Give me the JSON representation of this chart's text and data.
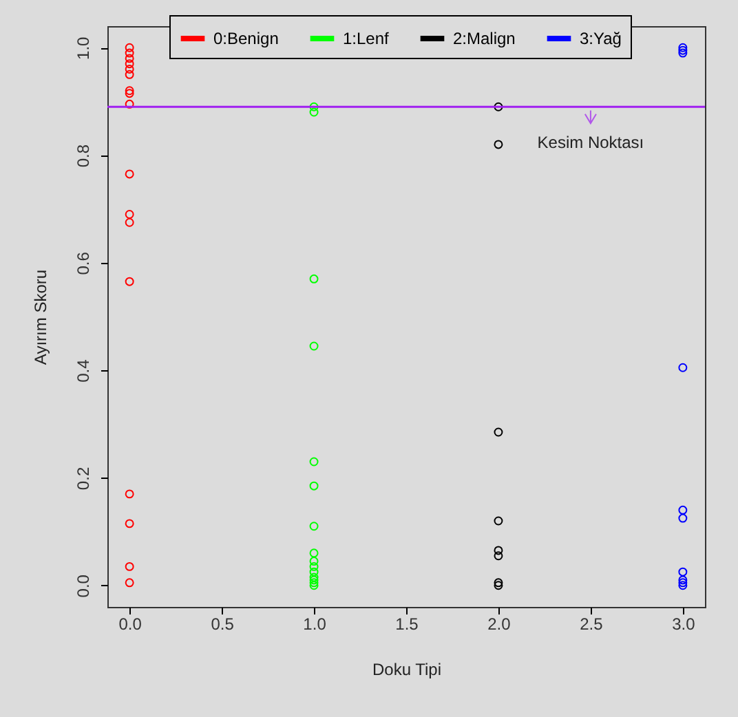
{
  "chart_data": {
    "type": "scatter",
    "xlabel": "Doku Tipi",
    "ylabel": "Ayırım Skoru",
    "xlim": [
      -0.12,
      3.12
    ],
    "ylim": [
      -0.04,
      1.04
    ],
    "xticks": [
      {
        "value": 0,
        "label": "0.0"
      },
      0.5,
      {
        "value": 1,
        "label": "1.0"
      },
      1.5,
      {
        "value": 2,
        "label": "2.0"
      },
      2.5,
      {
        "value": 3,
        "label": "3.0"
      }
    ],
    "yticks": [
      {
        "value": 0,
        "label": "0.0"
      },
      0.2,
      0.4,
      0.6,
      0.8,
      {
        "value": 1,
        "label": "1.0"
      }
    ],
    "grid": false,
    "legend": "top",
    "marker": "circle",
    "ref_lines": [
      {
        "axis": "y",
        "value": 0.89,
        "color": "#a020f0"
      }
    ],
    "annotations": [
      {
        "text": "Kesim Noktası",
        "x": 2.5,
        "y": 0.89
      }
    ],
    "series": [
      {
        "name": "0:Benign",
        "color": "#ff0000",
        "x": [
          0,
          0,
          0,
          0,
          0,
          0,
          0,
          0,
          0,
          0,
          0,
          0,
          0,
          0,
          0,
          0,
          0
        ],
        "values": [
          1.0,
          0.99,
          0.98,
          0.97,
          0.96,
          0.95,
          0.92,
          0.915,
          0.895,
          0.765,
          0.69,
          0.675,
          0.565,
          0.17,
          0.115,
          0.035,
          0.005
        ]
      },
      {
        "name": "1:Lenf",
        "color": "#00ff00",
        "x": [
          1,
          1,
          1,
          1,
          1,
          1,
          1,
          1,
          1,
          1,
          1,
          1,
          1,
          1,
          1
        ],
        "values": [
          0.89,
          0.88,
          0.57,
          0.445,
          0.23,
          0.185,
          0.11,
          0.06,
          0.045,
          0.035,
          0.025,
          0.015,
          0.01,
          0.005,
          0.0
        ]
      },
      {
        "name": "2:Malign",
        "color": "#000000",
        "x": [
          2,
          2,
          2,
          2,
          2,
          2,
          2,
          2
        ],
        "values": [
          0.89,
          0.82,
          0.285,
          0.12,
          0.065,
          0.055,
          0.005,
          0.0
        ]
      },
      {
        "name": "3:Yağ",
        "color": "#0000ff",
        "x": [
          3,
          3,
          3,
          3,
          3,
          3,
          3,
          3,
          3,
          3
        ],
        "values": [
          1.0,
          0.995,
          0.99,
          0.405,
          0.14,
          0.125,
          0.025,
          0.01,
          0.005,
          0.0
        ]
      }
    ]
  }
}
